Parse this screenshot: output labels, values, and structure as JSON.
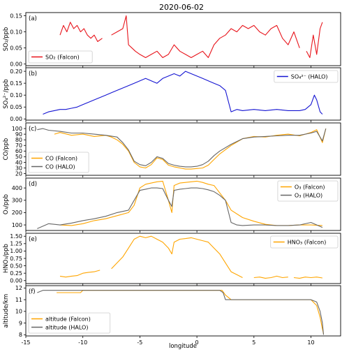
{
  "title": "2020-06-02",
  "xlabel": "longitude",
  "xlim": [
    -15,
    12.6
  ],
  "xticks": [
    -15,
    -10,
    -5,
    0,
    5,
    10
  ],
  "colors": {
    "falcon": "#ffa500",
    "halo": "#666666",
    "so2": "#e8141b",
    "so4": "#1414d2"
  },
  "chart_data": [
    {
      "type": "line",
      "panel_label": "(a)",
      "ylabel": "SO₂/ppb",
      "ylim": [
        -0.005,
        0.16
      ],
      "yticks": [
        0.0,
        0.05,
        0.1,
        0.15
      ],
      "yticklabels": [
        "0.00",
        "0.05",
        "0.10",
        "0.15"
      ],
      "legend_loc": "lower-left",
      "series": [
        {
          "name": "SO₂ (Falcon)",
          "color": "#e8141b",
          "segments": [
            {
              "x": [
                -12.0,
                -11.7,
                -11.4,
                -11.1,
                -10.8,
                -10.5,
                -10.2,
                -9.9,
                -9.6,
                -9.3,
                -9.0,
                -8.7,
                -8.3
              ],
              "y": [
                0.09,
                0.12,
                0.1,
                0.13,
                0.11,
                0.12,
                0.1,
                0.11,
                0.09,
                0.08,
                0.09,
                0.07,
                0.08
              ]
            },
            {
              "x": [
                -7.5,
                -7.0,
                -6.5,
                -6.2,
                -6.0,
                -5.7,
                -5.4,
                -5.0,
                -4.5,
                -4.0,
                -3.5,
                -3.0,
                -2.5,
                -2.0,
                -1.5,
                -1.0,
                -0.5,
                0.0,
                0.5,
                1.0,
                1.5,
                2.0,
                2.5,
                3.0,
                3.5,
                4.0,
                4.5,
                5.0,
                5.5,
                6.0,
                6.5,
                7.0,
                7.5,
                8.0,
                8.5,
                9.0
              ],
              "y": [
                0.09,
                0.1,
                0.11,
                0.15,
                0.06,
                0.05,
                0.04,
                0.03,
                0.02,
                0.03,
                0.04,
                0.02,
                0.03,
                0.06,
                0.04,
                0.03,
                0.02,
                0.03,
                0.04,
                0.02,
                0.06,
                0.08,
                0.09,
                0.11,
                0.1,
                0.12,
                0.11,
                0.12,
                0.1,
                0.09,
                0.11,
                0.12,
                0.08,
                0.06,
                0.1,
                0.05
              ]
            },
            {
              "x": [
                9.6,
                9.9,
                10.2,
                10.5,
                10.8,
                11.0
              ],
              "y": [
                0.04,
                0.02,
                0.09,
                0.03,
                0.11,
                0.13
              ]
            }
          ]
        }
      ]
    },
    {
      "type": "line",
      "panel_label": "(b)",
      "ylabel": "SO₄²⁻/ppb",
      "ylim": [
        -0.005,
        0.215
      ],
      "yticks": [
        0.0,
        0.05,
        0.1,
        0.15,
        0.2
      ],
      "yticklabels": [
        "0.00",
        "0.05",
        "0.10",
        "0.15",
        "0.20"
      ],
      "legend_loc": "upper-right",
      "series": [
        {
          "name": "SO₄²⁻ (HALO)",
          "color": "#1414d2",
          "segments": [
            {
              "x": [
                -13.5,
                -13.0,
                -12.5,
                -12.0,
                -11.5,
                -11.0,
                -10.5,
                -10.0,
                -9.5,
                -9.0,
                -8.5,
                -8.0,
                -7.5,
                -7.0,
                -6.5,
                -6.0,
                -5.5,
                -5.0,
                -4.5,
                -4.0,
                -3.5,
                -3.0,
                -2.5,
                -2.0,
                -1.5,
                -1.0,
                -0.5,
                0.0,
                0.5,
                1.0,
                1.5,
                2.0,
                2.5,
                3.0,
                3.5,
                4.0,
                5.0,
                6.0,
                7.0,
                8.0,
                9.0,
                9.5,
                10.0,
                10.3,
                10.5,
                10.8,
                11.0
              ],
              "y": [
                0.02,
                0.03,
                0.035,
                0.04,
                0.04,
                0.045,
                0.05,
                0.06,
                0.07,
                0.08,
                0.09,
                0.1,
                0.11,
                0.12,
                0.13,
                0.14,
                0.15,
                0.16,
                0.17,
                0.16,
                0.15,
                0.17,
                0.18,
                0.19,
                0.18,
                0.2,
                0.19,
                0.18,
                0.17,
                0.16,
                0.15,
                0.14,
                0.12,
                0.03,
                0.04,
                0.035,
                0.04,
                0.035,
                0.04,
                0.035,
                0.035,
                0.04,
                0.06,
                0.1,
                0.08,
                0.03,
                0.02
              ]
            }
          ]
        }
      ]
    },
    {
      "type": "line",
      "panel_label": "(c)",
      "ylabel": "CO/ppb",
      "ylim": [
        17,
        110
      ],
      "yticks": [
        20,
        30,
        40,
        50,
        60,
        70,
        80,
        90,
        100
      ],
      "yticklabels": [
        "20",
        "30",
        "40",
        "50",
        "60",
        "70",
        "80",
        "90",
        "100"
      ],
      "legend_loc": "lower-left",
      "series": [
        {
          "name": "CO (Falcon)",
          "color": "#ffa500",
          "segments": [
            {
              "x": [
                -12.5,
                -12.0,
                -11.0,
                -10.0,
                -9.0,
                -8.0,
                -7.5,
                -7.0,
                -6.5,
                -6.0,
                -5.5,
                -5.0,
                -4.5,
                -4.0,
                -3.5,
                -3.0,
                -2.5,
                -2.0,
                -1.5,
                -1.0,
                -0.5,
                0.0,
                0.5,
                1.0,
                1.5,
                2.0,
                3.0,
                4.0,
                5.0,
                6.0,
                7.0,
                8.0,
                9.0,
                10.0,
                10.5,
                11.0,
                11.3
              ],
              "y": [
                90,
                93,
                88,
                90,
                86,
                88,
                85,
                80,
                72,
                60,
                40,
                32,
                30,
                36,
                48,
                45,
                35,
                32,
                30,
                28,
                28,
                29,
                30,
                35,
                45,
                55,
                70,
                82,
                86,
                85,
                88,
                90,
                87,
                93,
                98,
                75,
                100
              ]
            }
          ]
        },
        {
          "name": "CO (HALO)",
          "color": "#666666",
          "segments": [
            {
              "x": [
                -14.0,
                -13.5,
                -13.0,
                -12.0,
                -11.0,
                -10.0,
                -9.0,
                -8.0,
                -7.0,
                -6.5,
                -6.0,
                -5.5,
                -5.0,
                -4.5,
                -4.0,
                -3.5,
                -3.0,
                -2.5,
                -2.0,
                -1.5,
                -1.0,
                -0.5,
                0.0,
                0.5,
                1.0,
                1.5,
                2.0,
                3.0,
                4.0,
                5.0,
                6.0,
                7.0,
                8.0,
                9.0,
                10.0,
                10.5,
                11.0,
                11.3
              ],
              "y": [
                98,
                100,
                97,
                95,
                92,
                92,
                90,
                88,
                85,
                75,
                62,
                42,
                36,
                34,
                40,
                50,
                47,
                38,
                35,
                33,
                32,
                32,
                33,
                36,
                42,
                52,
                60,
                72,
                82,
                85,
                86,
                87,
                88,
                88,
                92,
                95,
                78,
                100
              ]
            }
          ]
        }
      ]
    },
    {
      "type": "line",
      "panel_label": "(d)",
      "ylabel": "O₃/ppb",
      "ylim": [
        55,
        480
      ],
      "yticks": [
        100,
        200,
        300,
        400
      ],
      "yticklabels": [
        "100",
        "200",
        "300",
        "400"
      ],
      "legend_loc": "upper-right",
      "series": [
        {
          "name": "O₃ (Falcon)",
          "color": "#ffa500",
          "segments": [
            {
              "x": [
                -12.0,
                -11.0,
                -10.0,
                -9.0,
                -8.0,
                -7.0,
                -6.0,
                -5.5,
                -5.0,
                -4.5,
                -4.0,
                -3.5,
                -3.0,
                -2.5,
                -2.2,
                -2.0,
                -1.5,
                -1.0,
                -0.5,
                0.0,
                0.5,
                1.0,
                1.5,
                2.0,
                2.5,
                3.0,
                4.0,
                5.0,
                6.0,
                7.0,
                8.0,
                9.0,
                10.0,
                11.0
              ],
              "y": [
                100,
                95,
                110,
                135,
                150,
                175,
                200,
                260,
                400,
                430,
                440,
                450,
                455,
                300,
                200,
                420,
                440,
                445,
                450,
                455,
                445,
                430,
                420,
                360,
                300,
                220,
                160,
                130,
                105,
                95,
                95,
                100,
                100,
                95
              ]
            }
          ]
        },
        {
          "name": "O₃ (HALO)",
          "color": "#666666",
          "segments": [
            {
              "x": [
                -14.0,
                -13.0,
                -12.0,
                -11.0,
                -10.0,
                -9.0,
                -8.0,
                -7.0,
                -6.0,
                -5.5,
                -5.0,
                -4.5,
                -4.0,
                -3.5,
                -3.0,
                -2.5,
                -2.2,
                -2.0,
                -1.5,
                -1.0,
                -0.5,
                0.0,
                0.5,
                1.0,
                1.5,
                2.0,
                2.5,
                3.0,
                3.5,
                4.0,
                5.0,
                6.0,
                7.0,
                8.0,
                9.0,
                10.0,
                11.0
              ],
              "y": [
                70,
                110,
                100,
                115,
                135,
                150,
                170,
                200,
                220,
                300,
                380,
                390,
                400,
                400,
                395,
                300,
                250,
                380,
                390,
                395,
                400,
                400,
                395,
                385,
                370,
                340,
                300,
                120,
                100,
                95,
                100,
                100,
                95,
                95,
                100,
                120,
                80
              ]
            }
          ]
        }
      ]
    },
    {
      "type": "line",
      "panel_label": "(e)",
      "ylabel": "HNO₃/ppb",
      "ylim": [
        -0.1,
        1.6
      ],
      "yticks": [
        0.0,
        0.25,
        0.5,
        0.75,
        1.0,
        1.25,
        1.5
      ],
      "yticklabels": [
        "0.00",
        "0.25",
        "0.50",
        "0.75",
        "1.00",
        "1.25",
        "1.50"
      ],
      "legend_loc": "upper-right",
      "series": [
        {
          "name": "HNO₃ (Falcon)",
          "color": "#ffa500",
          "segments": [
            {
              "x": [
                -12.0,
                -11.5,
                -11.0,
                -10.5,
                -10.0,
                -9.5,
                -9.0,
                -8.5
              ],
              "y": [
                0.15,
                0.12,
                0.15,
                0.17,
                0.25,
                0.28,
                0.3,
                0.35
              ]
            },
            {
              "x": [
                -7.5,
                -7.0,
                -6.5,
                -6.0,
                -5.5,
                -5.0,
                -4.5,
                -4.0,
                -3.5,
                -3.0,
                -2.5,
                -2.2,
                -2.0,
                -1.5,
                -1.0,
                -0.5,
                0.0,
                0.5,
                1.0,
                1.5,
                2.0,
                2.5,
                3.0,
                3.5,
                4.0
              ],
              "y": [
                0.4,
                0.6,
                0.8,
                1.1,
                1.4,
                1.5,
                1.45,
                1.5,
                1.4,
                1.3,
                1.1,
                0.9,
                1.3,
                1.4,
                1.42,
                1.45,
                1.4,
                1.35,
                1.3,
                1.1,
                0.9,
                0.6,
                0.3,
                0.2,
                0.1
              ]
            },
            {
              "x": [
                5.0,
                5.5,
                6.0,
                6.5,
                7.0,
                7.5,
                8.0
              ],
              "y": [
                0.1,
                0.12,
                0.08,
                0.1,
                0.15,
                0.1,
                0.12
              ]
            },
            {
              "x": [
                8.5,
                9.0,
                9.5,
                10.0,
                10.5,
                11.0
              ],
              "y": [
                0.1,
                0.08,
                0.12,
                0.1,
                0.12,
                0.09
              ]
            }
          ]
        }
      ]
    },
    {
      "type": "line",
      "panel_label": "(f)",
      "ylabel": "altitude/km",
      "ylim": [
        7.9,
        12.2
      ],
      "yticks": [
        8,
        9,
        10,
        11,
        12
      ],
      "yticklabels": [
        "8",
        "9",
        "10",
        "11",
        "12"
      ],
      "legend_loc": "lower-left",
      "series": [
        {
          "name": "altitude (Falcon)",
          "color": "#ffa500",
          "segments": [
            {
              "x": [
                -12.3,
                -10.2,
                -10.0,
                2.2,
                2.5,
                3.0,
                6.5,
                10.0,
                10.5,
                10.8,
                11.0,
                11.1
              ],
              "y": [
                11.6,
                11.6,
                11.8,
                11.8,
                11.4,
                11.0,
                11.0,
                11.0,
                10.5,
                9.5,
                8.5,
                8.1
              ]
            }
          ]
        },
        {
          "name": "altitude (HALO)",
          "color": "#666666",
          "segments": [
            {
              "x": [
                -14.0,
                -13.5,
                -13.0,
                -2.0,
                2.0,
                2.3,
                2.5,
                3.0,
                10.0,
                10.5,
                10.8,
                11.0,
                11.1
              ],
              "y": [
                11.6,
                11.8,
                11.8,
                11.8,
                11.8,
                11.6,
                11.0,
                11.0,
                11.0,
                10.8,
                10.0,
                9.0,
                8.0
              ]
            }
          ]
        }
      ]
    }
  ]
}
